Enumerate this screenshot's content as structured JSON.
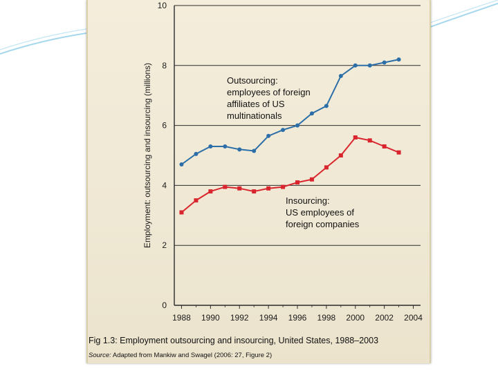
{
  "chart_data": {
    "type": "line",
    "title": "",
    "xlabel": "",
    "ylabel": "Employment: outsourcing and insourcing (millions)",
    "ylim": [
      0,
      10
    ],
    "xlim": [
      1987.5,
      2004.5
    ],
    "y_ticks": [
      0,
      2,
      4,
      6,
      8,
      10
    ],
    "x_ticks": [
      1988,
      1990,
      1992,
      1994,
      1996,
      1998,
      2000,
      2002,
      2004
    ],
    "grid": "horizontal",
    "series": [
      {
        "name": "Outsourcing",
        "color": "#2c6ea8",
        "marker": "circle",
        "x": [
          1988,
          1989,
          1990,
          1991,
          1992,
          1993,
          1994,
          1995,
          1996,
          1997,
          1998,
          1999,
          2000,
          2001,
          2002,
          2003
        ],
        "values": [
          4.7,
          5.05,
          5.3,
          5.3,
          5.2,
          5.15,
          5.65,
          5.85,
          6.0,
          6.4,
          6.65,
          7.65,
          8.0,
          8.0,
          8.1,
          8.2
        ]
      },
      {
        "name": "Insourcing",
        "color": "#d9262e",
        "marker": "square",
        "x": [
          1988,
          1989,
          1990,
          1991,
          1992,
          1993,
          1994,
          1995,
          1996,
          1997,
          1998,
          1999,
          2000,
          2001,
          2002,
          2003
        ],
        "values": [
          3.1,
          3.5,
          3.8,
          3.95,
          3.9,
          3.8,
          3.9,
          3.95,
          4.1,
          4.2,
          4.6,
          5.0,
          5.6,
          5.5,
          5.3,
          5.1
        ]
      }
    ],
    "annotations": [
      {
        "series": "Outsourcing",
        "lines": [
          "Outsourcing:",
          "employees of foreign",
          "affiliates of US",
          "multinationals"
        ]
      },
      {
        "series": "Insourcing",
        "lines": [
          "Insourcing:",
          "US employees of",
          "foreign companies"
        ]
      }
    ]
  },
  "caption": {
    "figure": "Fig 1.3:",
    "text": "Employment outsourcing and insourcing, United States, 1988–2003"
  },
  "source": {
    "label": "Source:",
    "text": "Adapted from Mankiw and Swagel (2006: 27, Figure 2)"
  }
}
